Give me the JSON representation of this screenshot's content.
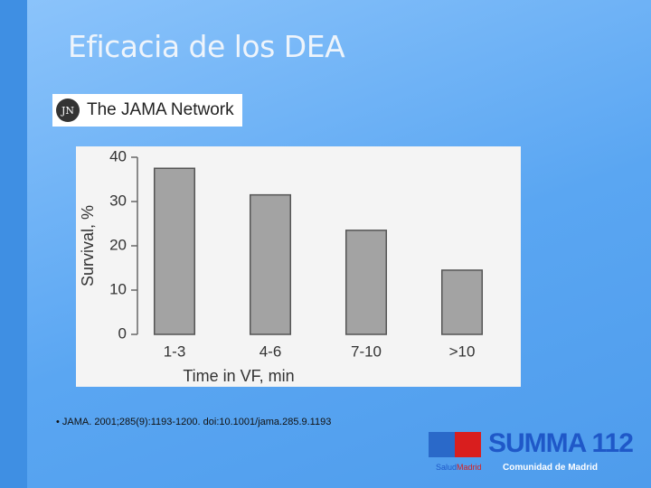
{
  "slide": {
    "title": "Eficacia de los DEA",
    "logo_mark": "JN",
    "logo_text": "The JAMA Network",
    "citation": "• JAMA. 2001;285(9):1193-1200. doi:10.1001/jama.285.9.1193",
    "brand": "SUMMA 112",
    "salud": "Salud",
    "madrid": "Madrid",
    "comunidad": "Comunidad de Madrid"
  },
  "chart_data": {
    "type": "bar",
    "xlabel": "Time in VF, min",
    "ylabel": "Survival, %",
    "categories": [
      "1-3",
      "4-6",
      "7-10",
      ">10"
    ],
    "values": [
      37.5,
      31.5,
      23.5,
      14.5
    ],
    "color": "#a3a3a3",
    "ylim": [
      0,
      40
    ],
    "yticks": [
      0,
      10,
      20,
      30,
      40
    ],
    "grid": false
  }
}
